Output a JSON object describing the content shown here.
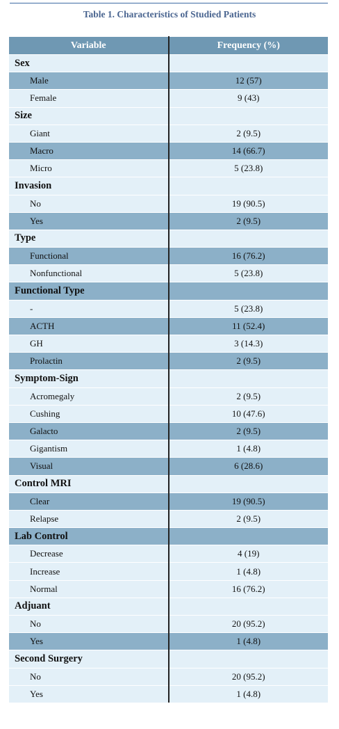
{
  "title": "Table 1. Characteristics of Studied Patients",
  "table": {
    "header": [
      "Variable",
      "Frequency (%)"
    ],
    "rows": [
      [
        "Sex"
      ],
      [
        "Male",
        "12 (57)"
      ],
      [
        "Female",
        "9 (43)"
      ],
      [
        "Size"
      ],
      [
        "Giant",
        "2 (9.5)"
      ],
      [
        "Macro",
        "14 (66.7)"
      ],
      [
        "Micro",
        "5 (23.8)"
      ],
      [
        "Invasion"
      ],
      [
        "No",
        "19 (90.5)"
      ],
      [
        "Yes",
        "2 (9.5)"
      ],
      [
        "Type"
      ],
      [
        "Functional",
        "16 (76.2)"
      ],
      [
        "Nonfunctional",
        "5 (23.8)"
      ],
      [
        "Functional Type"
      ],
      [
        "-",
        "5 (23.8)"
      ],
      [
        "ACTH",
        "11 (52.4)"
      ],
      [
        "GH",
        "3 (14.3)"
      ],
      [
        "Prolactin",
        "2 (9.5)"
      ],
      [
        "Symptom-Sign"
      ],
      [
        "Acromegaly",
        "2 (9.5)"
      ],
      [
        "Cushing",
        "10 (47.6)"
      ],
      [
        "Galacto",
        "2 (9.5)"
      ],
      [
        "Gigantism",
        "1 (4.8)"
      ],
      [
        "Visual",
        "6 (28.6)"
      ],
      [
        "Control MRI"
      ],
      [
        "Clear",
        "19 (90.5)"
      ],
      [
        "Relapse",
        "2 (9.5)"
      ],
      [
        "Lab Control"
      ],
      [
        "Decrease",
        "4 (19)"
      ],
      [
        "Increase",
        "1 (4.8)"
      ],
      [
        "Normal",
        "16 (76.2)"
      ],
      [
        "Adjuant"
      ],
      [
        "No",
        "20 (95.2)"
      ],
      [
        "Yes",
        "1 (4.8)"
      ],
      [
        "Second Surgery"
      ],
      [
        "No",
        "20 (95.2)"
      ],
      [
        "Yes",
        "1 (4.8)"
      ]
    ]
  }
}
